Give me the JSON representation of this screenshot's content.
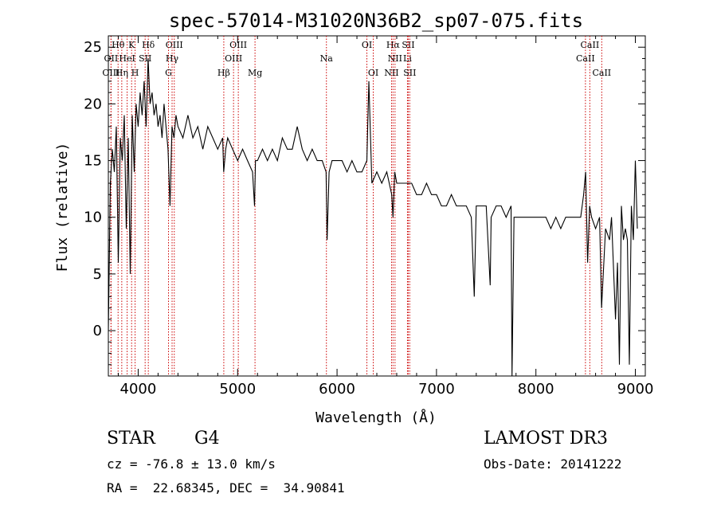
{
  "chart_data": {
    "type": "line",
    "title": "spec-57014-M31020N36B2_sp07-075.fits",
    "xlabel": "Wavelength (Å)",
    "ylabel": "Flux (relative)",
    "xlim": [
      3700,
      9100
    ],
    "ylim": [
      -4,
      26
    ],
    "xticks": [
      4000,
      5000,
      6000,
      7000,
      8000,
      9000
    ],
    "yticks": [
      0,
      5,
      10,
      15,
      20,
      25
    ],
    "x": [
      3700,
      3720,
      3740,
      3760,
      3780,
      3800,
      3820,
      3840,
      3860,
      3880,
      3900,
      3920,
      3940,
      3960,
      3980,
      4000,
      4020,
      4040,
      4060,
      4080,
      4100,
      4120,
      4140,
      4160,
      4180,
      4200,
      4220,
      4240,
      4260,
      4280,
      4300,
      4320,
      4340,
      4360,
      4380,
      4400,
      4450,
      4500,
      4550,
      4600,
      4650,
      4700,
      4750,
      4800,
      4850,
      4860,
      4880,
      4900,
      4950,
      5000,
      5050,
      5100,
      5150,
      5170,
      5180,
      5200,
      5250,
      5300,
      5350,
      5400,
      5450,
      5500,
      5550,
      5600,
      5650,
      5700,
      5750,
      5800,
      5850,
      5890,
      5900,
      5920,
      5950,
      6000,
      6050,
      6100,
      6150,
      6200,
      6250,
      6300,
      6320,
      6350,
      6400,
      6450,
      6500,
      6550,
      6563,
      6580,
      6600,
      6650,
      6700,
      6750,
      6800,
      6850,
      6900,
      6950,
      7000,
      7050,
      7100,
      7150,
      7200,
      7250,
      7300,
      7350,
      7380,
      7400,
      7450,
      7500,
      7540,
      7550,
      7600,
      7650,
      7700,
      7750,
      7760,
      7780,
      7800,
      7850,
      7900,
      7950,
      8000,
      8050,
      8100,
      8150,
      8200,
      8250,
      8300,
      8350,
      8400,
      8450,
      8480,
      8500,
      8520,
      8540,
      8560,
      8600,
      8640,
      8660,
      8700,
      8740,
      8760,
      8800,
      8820,
      8840,
      8860,
      8880,
      8900,
      8920,
      8940,
      8960,
      8980,
      9000,
      9020
    ],
    "y": [
      0,
      13,
      16,
      14,
      18,
      6,
      17,
      15,
      19,
      9,
      17,
      5,
      19,
      14,
      20,
      18,
      21,
      19,
      22,
      18,
      24,
      20,
      21,
      19,
      20,
      18,
      19,
      17,
      20,
      18,
      16,
      11,
      18,
      17,
      19,
      18,
      17,
      19,
      17,
      18,
      16,
      18,
      17,
      16,
      17,
      14,
      16,
      17,
      16,
      15,
      16,
      15,
      14,
      11,
      15,
      15,
      16,
      15,
      16,
      15,
      17,
      16,
      16,
      18,
      16,
      15,
      16,
      15,
      15,
      14,
      8,
      14,
      15,
      15,
      15,
      14,
      15,
      14,
      14,
      15,
      22,
      13,
      14,
      13,
      14,
      12,
      10,
      14,
      13,
      13,
      13,
      13,
      12,
      12,
      13,
      12,
      12,
      11,
      11,
      12,
      11,
      11,
      11,
      10,
      3,
      11,
      11,
      11,
      4,
      10,
      11,
      11,
      10,
      11,
      -4,
      10,
      10,
      10,
      10,
      10,
      10,
      10,
      10,
      9,
      10,
      9,
      10,
      10,
      10,
      10,
      12,
      14,
      6,
      11,
      10,
      9,
      10,
      2,
      9,
      8,
      10,
      1,
      6,
      -3,
      11,
      8,
      9,
      8,
      -3,
      11,
      8,
      15,
      9
    ],
    "series": [
      {
        "name": "Flux",
        "color": "#000000"
      }
    ],
    "lines": [
      {
        "name": "Hθ",
        "wl": 3798,
        "row": 0
      },
      {
        "name": "OII",
        "wl": 3727,
        "row": 1
      },
      {
        "name": "OIII",
        "wl": 3727,
        "row": 2
      },
      {
        "name": "K",
        "wl": 3934,
        "row": 0
      },
      {
        "name": "HeI",
        "wl": 3889,
        "row": 1
      },
      {
        "name": "Hη",
        "wl": 3835,
        "row": 2
      },
      {
        "name": "Hδ",
        "wl": 4102,
        "row": 0
      },
      {
        "name": "SII",
        "wl": 4070,
        "row": 1
      },
      {
        "name": "H",
        "wl": 3969,
        "row": 2
      },
      {
        "name": "OIII",
        "wl": 4363,
        "row": 0
      },
      {
        "name": "Hγ",
        "wl": 4341,
        "row": 1
      },
      {
        "name": "G",
        "wl": 4305,
        "row": 2
      },
      {
        "name": "OIII",
        "wl": 5007,
        "row": 0
      },
      {
        "name": "OIII",
        "wl": 4959,
        "row": 1
      },
      {
        "name": "Hβ",
        "wl": 4861,
        "row": 2
      },
      {
        "name": "Mg",
        "wl": 5175,
        "row": 2
      },
      {
        "name": "Na",
        "wl": 5893,
        "row": 1
      },
      {
        "name": "OI",
        "wl": 6300,
        "row": 0
      },
      {
        "name": "OI",
        "wl": 6364,
        "row": 2
      },
      {
        "name": "Hα",
        "wl": 6563,
        "row": 0
      },
      {
        "name": "SII",
        "wl": 6716,
        "row": 0
      },
      {
        "name": "NII",
        "wl": 6583,
        "row": 1
      },
      {
        "name": "Li",
        "wl": 6708,
        "row": 1
      },
      {
        "name": "NII",
        "wl": 6548,
        "row": 2
      },
      {
        "name": "SII",
        "wl": 6731,
        "row": 2
      },
      {
        "name": "CaII",
        "wl": 8542,
        "row": 0
      },
      {
        "name": "CaII",
        "wl": 8498,
        "row": 1
      },
      {
        "name": "CaII",
        "wl": 8662,
        "row": 2
      }
    ],
    "line_color": "#cc0000"
  },
  "info": {
    "class": "STAR",
    "subclass": "G4",
    "survey": "LAMOST DR3",
    "cz": "cz = -76.8 ± 13.0 km/s",
    "obs_date": "Obs-Date: 20141222",
    "radec": "RA =  22.68345, DEC =  34.90841"
  }
}
